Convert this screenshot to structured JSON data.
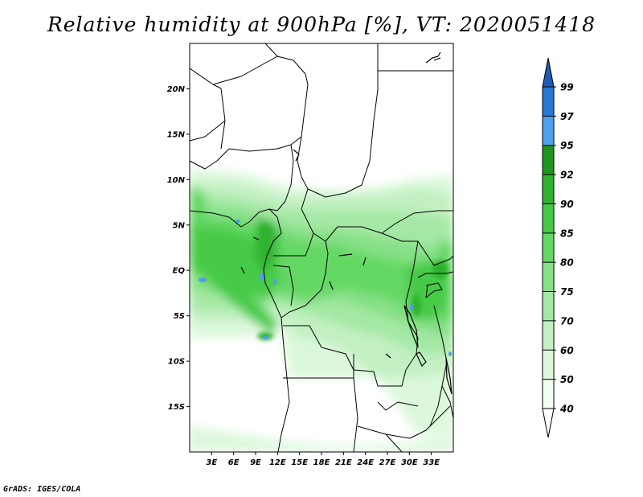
{
  "title": "Relative humidity at 900hPa [%], VT: 2020051418",
  "credit": "GrADS: IGES/COLA",
  "map": {
    "lon_range": [
      0,
      36
    ],
    "lat_range": [
      -20,
      25
    ],
    "lat_ticks": [
      {
        "value": 20,
        "label": "20N"
      },
      {
        "value": 15,
        "label": "15N"
      },
      {
        "value": 10,
        "label": "10N"
      },
      {
        "value": 5,
        "label": "5N"
      },
      {
        "value": 0,
        "label": "EQ"
      },
      {
        "value": -5,
        "label": "5S"
      },
      {
        "value": -10,
        "label": "10S"
      },
      {
        "value": -15,
        "label": "15S"
      }
    ],
    "lon_ticks": [
      {
        "value": 3,
        "label": "3E"
      },
      {
        "value": 6,
        "label": "6E"
      },
      {
        "value": 9,
        "label": "9E"
      },
      {
        "value": 12,
        "label": "12E"
      },
      {
        "value": 15,
        "label": "15E"
      },
      {
        "value": 18,
        "label": "18E"
      },
      {
        "value": 21,
        "label": "21E"
      },
      {
        "value": 24,
        "label": "24E"
      },
      {
        "value": 27,
        "label": "27E"
      },
      {
        "value": 30,
        "label": "30E"
      },
      {
        "value": 33,
        "label": "33E"
      }
    ]
  },
  "colorbar": {
    "levels": [
      {
        "label": "40",
        "color": "#f0fff0"
      },
      {
        "label": "50",
        "color": "#dcf8dc"
      },
      {
        "label": "60",
        "color": "#c2f0c2"
      },
      {
        "label": "70",
        "color": "#a4e8a4"
      },
      {
        "label": "75",
        "color": "#86e086"
      },
      {
        "label": "80",
        "color": "#64d864"
      },
      {
        "label": "85",
        "color": "#46ca46"
      },
      {
        "label": "90",
        "color": "#2eb22e"
      },
      {
        "label": "92",
        "color": "#1e961e"
      },
      {
        "label": "95",
        "color": "#4ea0ee"
      },
      {
        "label": "97",
        "color": "#2878d8"
      },
      {
        "label": "99",
        "color": "#1e5ab8"
      }
    ],
    "top_triangle_color": "#1e5ab8",
    "bottom_triangle_color": "#ffffff"
  }
}
